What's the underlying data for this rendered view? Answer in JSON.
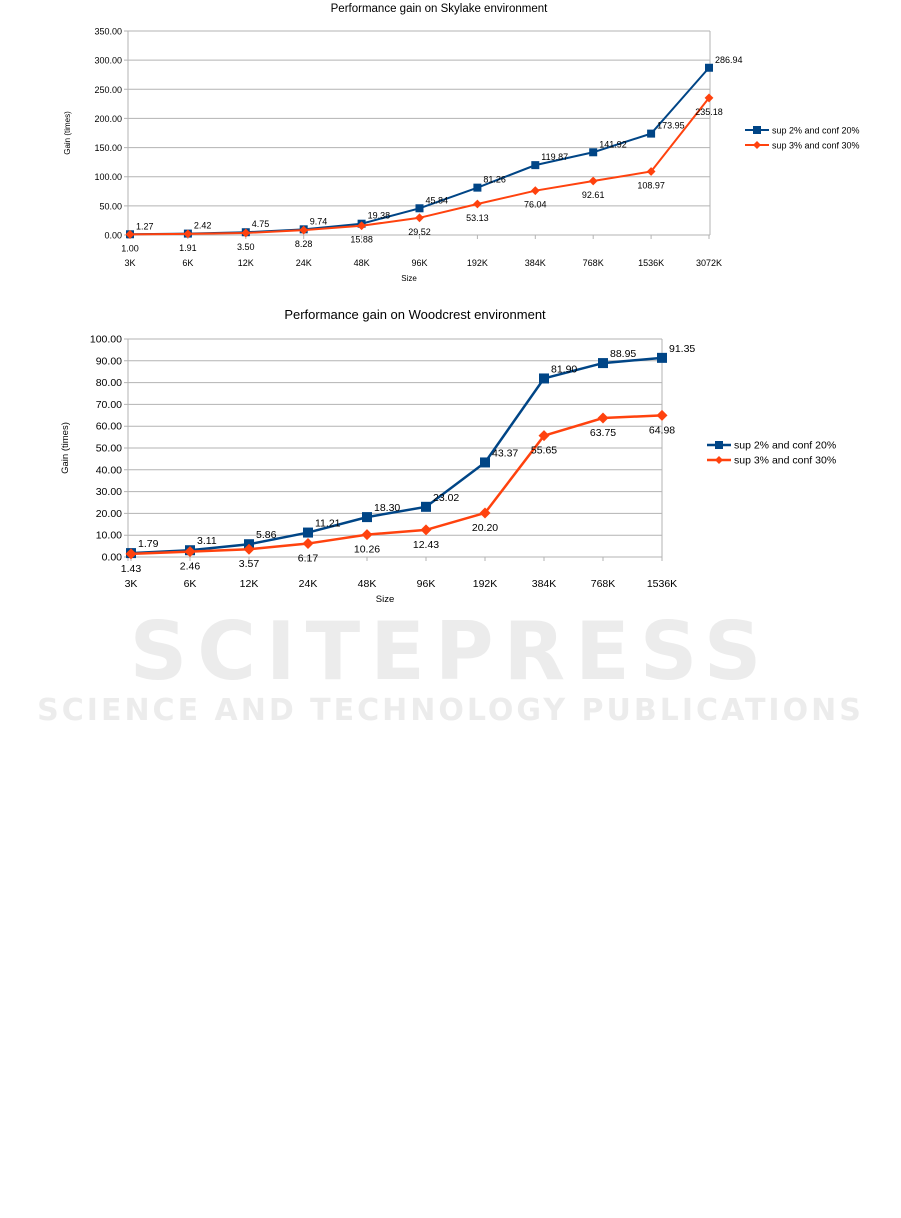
{
  "watermark": {
    "main": "SCITEPRESS",
    "sub": "SCIENCE AND TECHNOLOGY PUBLICATIONS"
  },
  "chart_data": [
    {
      "type": "line",
      "title": "Performance gain on Skylake environment",
      "xlabel": "Size",
      "ylabel": "Gain (times)",
      "categories": [
        "3K",
        "6K",
        "12K",
        "24K",
        "48K",
        "96K",
        "192K",
        "384K",
        "768K",
        "1536K",
        "3072K"
      ],
      "ylim": [
        0,
        350
      ],
      "ytick_step": 50,
      "grid": true,
      "legend_position": "right",
      "series": [
        {
          "name": "sup 2% and conf 20%",
          "color": "#004586",
          "marker": "square",
          "values": [
            1.27,
            2.42,
            4.75,
            9.74,
            19.38,
            45.84,
            81.26,
            119.87,
            141.92,
            173.95,
            286.94
          ]
        },
        {
          "name": "sup 3% and conf 30%",
          "color": "#ff420e",
          "marker": "diamond",
          "values": [
            1.0,
            1.91,
            3.5,
            8.28,
            15.88,
            29.52,
            53.13,
            76.04,
            92.61,
            108.97,
            235.18
          ]
        }
      ]
    },
    {
      "type": "line",
      "title": "Performance gain on Woodcrest environment",
      "xlabel": "Size",
      "ylabel": "Gain (times)",
      "categories": [
        "3K",
        "6K",
        "12K",
        "24K",
        "48K",
        "96K",
        "192K",
        "384K",
        "768K",
        "1536K"
      ],
      "ylim": [
        0,
        100
      ],
      "ytick_step": 10,
      "grid": true,
      "legend_position": "right",
      "series": [
        {
          "name": "sup 2% and conf 20%",
          "color": "#004586",
          "marker": "square",
          "values": [
            1.79,
            3.11,
            5.86,
            11.21,
            18.3,
            23.02,
            43.37,
            81.9,
            88.95,
            91.35
          ]
        },
        {
          "name": "sup 3% and conf 30%",
          "color": "#ff420e",
          "marker": "diamond",
          "values": [
            1.43,
            2.46,
            3.57,
            6.17,
            10.26,
            12.43,
            20.2,
            55.65,
            63.75,
            64.98
          ]
        }
      ]
    }
  ]
}
